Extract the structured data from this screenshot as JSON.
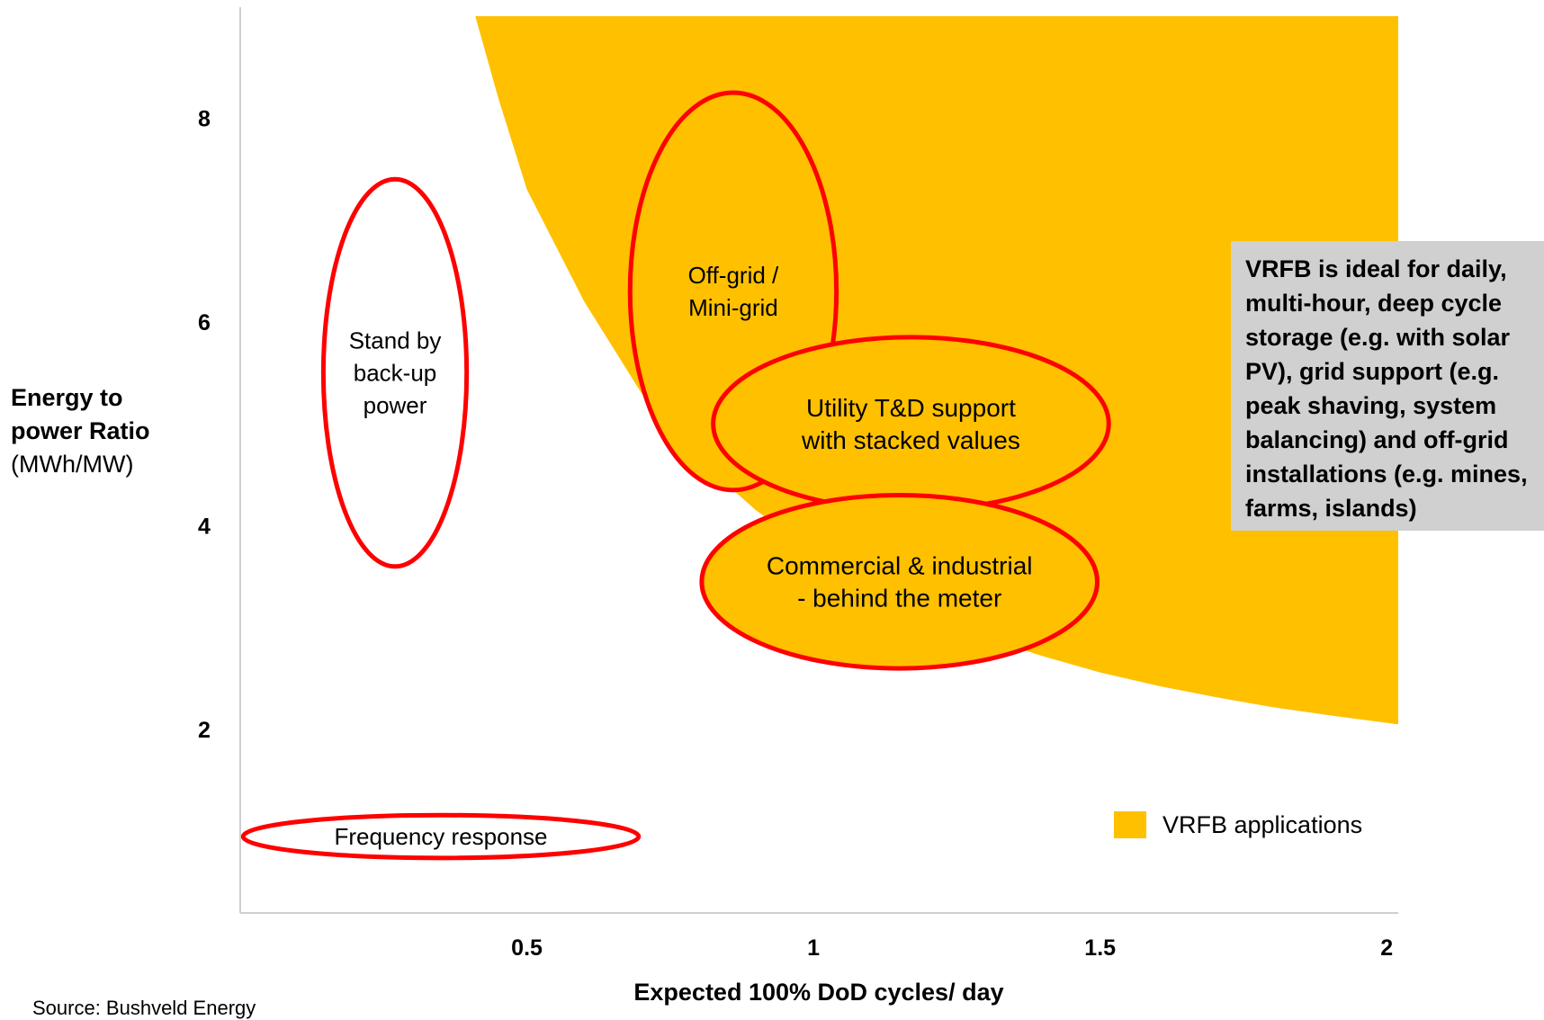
{
  "chart_data": {
    "type": "area",
    "xlabel": "Expected 100% DoD cycles/ day",
    "ylabel": {
      "bold": "Energy to power Ratio",
      "unit": "(MWh/MW)"
    },
    "x_ticks": [
      "0.5",
      "1",
      "1.5",
      "2"
    ],
    "y_ticks": [
      "2",
      "4",
      "6",
      "8"
    ],
    "xlim": [
      0.0,
      2.02
    ],
    "ylim": [
      0.2,
      9.0
    ],
    "vrfb_region": {
      "name": "VRFB applications",
      "color": "#FFC000",
      "boundary": [
        {
          "x": 0.41,
          "y": 9.0
        },
        {
          "x": 0.45,
          "y": 8.2
        },
        {
          "x": 0.5,
          "y": 7.3
        },
        {
          "x": 0.6,
          "y": 6.2
        },
        {
          "x": 0.7,
          "y": 5.3
        },
        {
          "x": 0.8,
          "y": 4.65
        },
        {
          "x": 0.9,
          "y": 4.15
        },
        {
          "x": 1.0,
          "y": 3.75
        },
        {
          "x": 1.1,
          "y": 3.45
        },
        {
          "x": 1.2,
          "y": 3.15
        },
        {
          "x": 1.3,
          "y": 2.9
        },
        {
          "x": 1.4,
          "y": 2.72
        },
        {
          "x": 1.5,
          "y": 2.56
        },
        {
          "x": 1.6,
          "y": 2.43
        },
        {
          "x": 1.7,
          "y": 2.32
        },
        {
          "x": 1.8,
          "y": 2.22
        },
        {
          "x": 1.9,
          "y": 2.14
        },
        {
          "x": 2.02,
          "y": 2.05
        }
      ]
    },
    "applications": [
      {
        "label": [
          "Stand by",
          "back-up",
          "power"
        ],
        "cx": 0.27,
        "cy": 5.5,
        "rx": 0.125,
        "ry": 1.9,
        "filled": false
      },
      {
        "label": [
          "Off-grid /",
          "Mini-grid"
        ],
        "cx": 0.86,
        "cy": 6.3,
        "rx": 0.18,
        "ry": 1.95,
        "filled": true
      },
      {
        "label": [
          "Utility T&D support",
          "with stacked values"
        ],
        "cx": 1.17,
        "cy": 5.0,
        "rx": 0.345,
        "ry": 0.85,
        "filled": true
      },
      {
        "label": [
          "Commercial & industrial",
          "- behind the meter"
        ],
        "cx": 1.15,
        "cy": 3.45,
        "rx": 0.345,
        "ry": 0.85,
        "filled": true
      },
      {
        "label": [
          "Frequency response"
        ],
        "cx": 0.35,
        "cy": 0.95,
        "rx": 0.345,
        "ry": 0.21,
        "filled": false
      }
    ],
    "ellipse_color": "#FF0000",
    "grid": false,
    "legend_position": "bottom-right"
  },
  "callout": "VRFB is ideal for daily, multi-hour, deep cycle storage (e.g. with solar PV), grid support (e.g. peak shaving, system balancing) and off-grid installations (e.g. mines, farms, islands)",
  "source": "Source: Bushveld Energy"
}
